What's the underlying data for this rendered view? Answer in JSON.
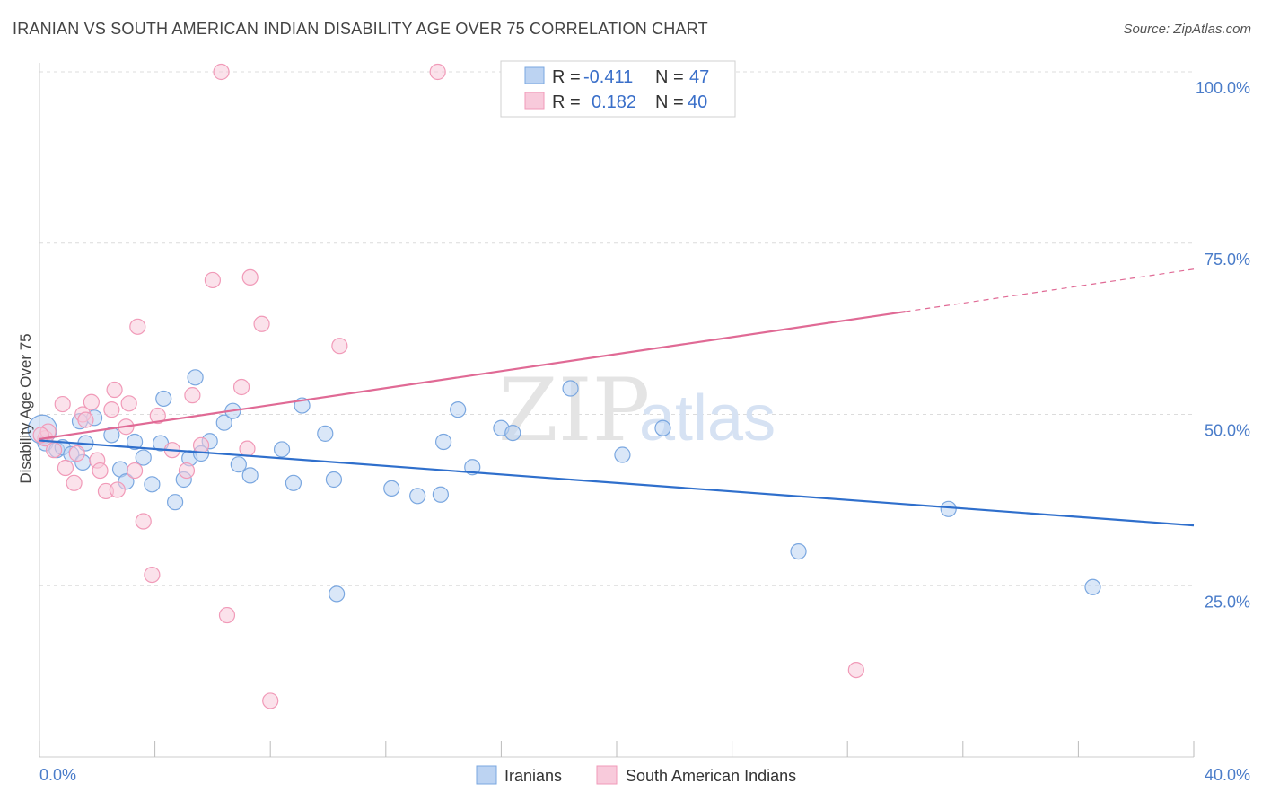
{
  "title": "IRANIAN VS SOUTH AMERICAN INDIAN DISABILITY AGE OVER 75 CORRELATION CHART",
  "source": "Source: ZipAtlas.com",
  "watermark": {
    "part1": "ZIP",
    "part2": "atlas"
  },
  "chart_data": {
    "type": "scatter",
    "ylabel": "Disability Age Over 75",
    "xlim": [
      0,
      40
    ],
    "ylim": [
      0,
      100
    ],
    "x_tick_labels": [
      {
        "value": 0,
        "label": "0.0%"
      },
      {
        "value": 40,
        "label": "40.0%"
      }
    ],
    "y_tick_labels": [
      {
        "value": 25,
        "label": "25.0%"
      },
      {
        "value": 50,
        "label": "50.0%"
      },
      {
        "value": 75,
        "label": "75.0%"
      },
      {
        "value": 100,
        "label": "100.0%"
      }
    ],
    "grid": true,
    "legend": {
      "position": "top-center",
      "rows": [
        {
          "r_label": "R =",
          "r_value": "-0.411",
          "n_label": "N =",
          "n_value": "47"
        },
        {
          "r_label": "R =",
          "r_value": "0.182",
          "n_label": "N =",
          "n_value": "40"
        }
      ]
    },
    "series": [
      {
        "name": "Iranians",
        "color": "#7aa7e0",
        "fill": "#bcd3f2",
        "line_color": "#2f6fcc",
        "trend": {
          "x0": 0,
          "y0": 46.2,
          "x1": 40,
          "y1": 33.8,
          "solid_to": 40
        },
        "points": [
          [
            0.1,
            47.8
          ],
          [
            0.2,
            45.8
          ],
          [
            0.6,
            44.8
          ],
          [
            0.8,
            45.2
          ],
          [
            1.1,
            44.2
          ],
          [
            1.4,
            49.0
          ],
          [
            1.5,
            43.0
          ],
          [
            1.6,
            45.8
          ],
          [
            1.9,
            49.5
          ],
          [
            2.5,
            47.0
          ],
          [
            2.8,
            42.0
          ],
          [
            3.0,
            40.2
          ],
          [
            3.3,
            46.0
          ],
          [
            3.6,
            43.7
          ],
          [
            3.9,
            39.8
          ],
          [
            4.2,
            45.8
          ],
          [
            4.3,
            52.3
          ],
          [
            4.7,
            37.2
          ],
          [
            5.0,
            40.5
          ],
          [
            5.2,
            43.6
          ],
          [
            5.4,
            55.4
          ],
          [
            5.6,
            44.3
          ],
          [
            5.9,
            46.1
          ],
          [
            6.4,
            48.8
          ],
          [
            6.7,
            50.5
          ],
          [
            6.9,
            42.7
          ],
          [
            7.3,
            41.1
          ],
          [
            8.4,
            44.9
          ],
          [
            8.8,
            40.0
          ],
          [
            9.1,
            51.3
          ],
          [
            9.9,
            47.2
          ],
          [
            10.2,
            40.5
          ],
          [
            10.3,
            23.8
          ],
          [
            12.2,
            39.2
          ],
          [
            13.1,
            38.1
          ],
          [
            13.9,
            38.3
          ],
          [
            14.0,
            46.0
          ],
          [
            14.5,
            50.7
          ],
          [
            15.0,
            42.3
          ],
          [
            16.0,
            48.0
          ],
          [
            16.4,
            47.3
          ],
          [
            18.4,
            53.8
          ],
          [
            20.2,
            44.1
          ],
          [
            21.6,
            48.0
          ],
          [
            26.3,
            30.0
          ],
          [
            31.5,
            36.2
          ],
          [
            36.5,
            24.8
          ]
        ]
      },
      {
        "name": "South American Indians",
        "color": "#f19ab8",
        "fill": "#f8cadb",
        "line_color": "#e06a95",
        "trend": {
          "x0": 0,
          "y0": 46.4,
          "x1": 40,
          "y1": 71.2,
          "solid_to": 30
        },
        "points": [
          [
            0.2,
            46.5
          ],
          [
            0.3,
            47.5
          ],
          [
            0.5,
            44.8
          ],
          [
            0.8,
            51.5
          ],
          [
            0.9,
            42.2
          ],
          [
            1.2,
            40.0
          ],
          [
            1.3,
            44.3
          ],
          [
            1.5,
            50.0
          ],
          [
            1.6,
            49.2
          ],
          [
            1.8,
            51.8
          ],
          [
            2.0,
            43.3
          ],
          [
            2.1,
            41.8
          ],
          [
            2.3,
            38.8
          ],
          [
            2.5,
            50.7
          ],
          [
            2.6,
            53.6
          ],
          [
            2.7,
            39.0
          ],
          [
            3.0,
            48.2
          ],
          [
            3.1,
            51.6
          ],
          [
            3.3,
            41.8
          ],
          [
            3.4,
            62.8
          ],
          [
            3.6,
            34.4
          ],
          [
            3.9,
            26.6
          ],
          [
            4.1,
            49.8
          ],
          [
            4.6,
            44.8
          ],
          [
            5.1,
            41.8
          ],
          [
            5.3,
            52.8
          ],
          [
            5.6,
            45.5
          ],
          [
            6.0,
            69.6
          ],
          [
            6.3,
            100.0
          ],
          [
            6.5,
            20.7
          ],
          [
            7.0,
            54.0
          ],
          [
            7.2,
            45.0
          ],
          [
            7.3,
            70.0
          ],
          [
            7.7,
            63.2
          ],
          [
            8.0,
            8.2
          ],
          [
            10.4,
            60.0
          ],
          [
            13.8,
            100.0
          ],
          [
            22.4,
            100.0
          ],
          [
            28.3,
            12.7
          ],
          [
            0.05,
            47.0
          ]
        ]
      }
    ]
  }
}
